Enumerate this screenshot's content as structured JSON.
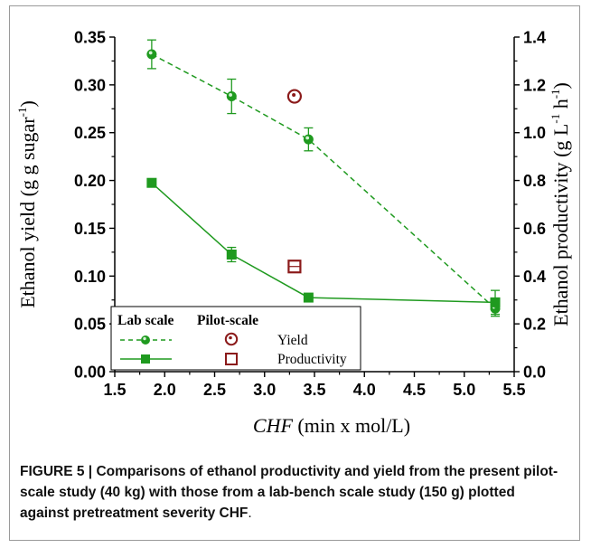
{
  "chart_data": {
    "type": "scatter",
    "x_label_italic": "CHF",
    "x_label_rest": " (min x mol/L)",
    "y_left_label_main": "Ethanol yield (g g sugar",
    "y_left_label_sup": "-1",
    "y_left_label_close": ")",
    "y_right_label_main": "Ethanol productivity (g L",
    "y_right_label_sup1": "-1",
    "y_right_label_mid": " h",
    "y_right_label_sup2": "-1",
    "y_right_label_close": ")",
    "xlim": [
      1.5,
      5.5
    ],
    "ylim_left": [
      0.0,
      0.35
    ],
    "ylim_right": [
      0.0,
      1.4
    ],
    "x_ticks": [
      "1.5",
      "2.0",
      "2.5",
      "3.0",
      "3.5",
      "4.0",
      "4.5",
      "5.0",
      "5.5"
    ],
    "y_left_ticks": [
      "0.00",
      "0.05",
      "0.10",
      "0.15",
      "0.20",
      "0.25",
      "0.30",
      "0.35"
    ],
    "y_right_ticks": [
      "0.0",
      "0.2",
      "0.4",
      "0.6",
      "0.8",
      "1.0",
      "1.2",
      "1.4"
    ],
    "grid": false,
    "series": [
      {
        "group": "lab",
        "marker": "circle",
        "axis": "left",
        "line": "dashed",
        "color": "#1f9a1f",
        "points": [
          {
            "x": 1.87,
            "y": 0.332,
            "err": 0.015
          },
          {
            "x": 2.67,
            "y": 0.288,
            "err": 0.018
          },
          {
            "x": 3.44,
            "y": 0.243,
            "err": 0.012
          },
          {
            "x": 5.31,
            "y": 0.066,
            "err": 0.008
          }
        ]
      },
      {
        "group": "lab",
        "marker": "square",
        "axis": "right",
        "line": "solid",
        "color": "#1f9a1f",
        "points": [
          {
            "x": 1.87,
            "y": 0.79,
            "err": 0.0
          },
          {
            "x": 2.67,
            "y": 0.49,
            "err": 0.03
          },
          {
            "x": 3.44,
            "y": 0.31,
            "err": 0.0
          },
          {
            "x": 5.31,
            "y": 0.29,
            "err": 0.05
          }
        ]
      },
      {
        "group": "pilot",
        "marker": "open-circle",
        "axis": "left",
        "line": "none",
        "color": "#8b1a1a",
        "points": [
          {
            "x": 3.3,
            "y": 0.288,
            "err": 0.0
          }
        ]
      },
      {
        "group": "pilot",
        "marker": "open-square",
        "axis": "right",
        "line": "none",
        "color": "#8b1a1a",
        "points": [
          {
            "x": 3.3,
            "y": 0.44,
            "err": 0.0
          }
        ]
      }
    ],
    "legend": {
      "placement": "bottom-left",
      "header_lab": "Lab scale",
      "header_pilot": "Pilot-scale",
      "row_yield": "Yield",
      "row_productivity": "Productivity"
    }
  },
  "caption": {
    "label": "FIGURE 5 |",
    "text": " Comparisons of ethanol productivity and yield from the present pilot-scale study (40 kg) with those from a lab-bench scale study (150 g) plotted against pretreatment severity CHF",
    "end": "."
  }
}
